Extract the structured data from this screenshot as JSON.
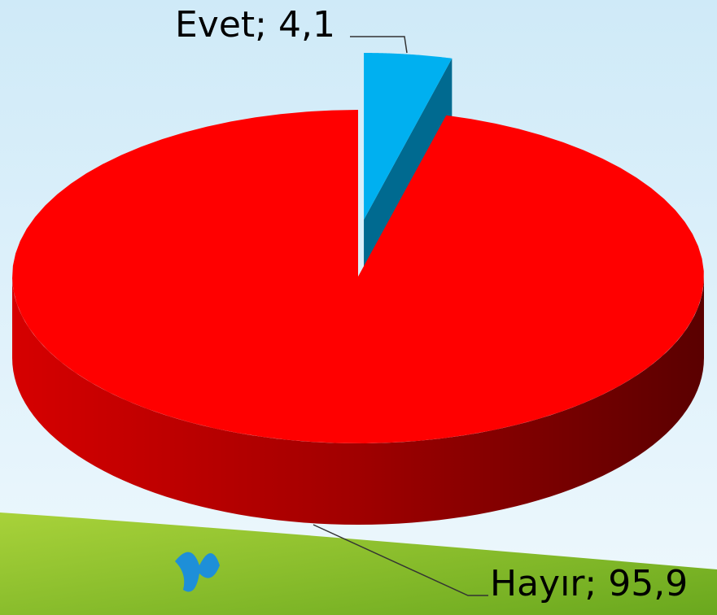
{
  "chart_data": {
    "type": "pie3d",
    "values": [
      4.1,
      95.9
    ],
    "value_labels": [
      "Evet; 4,1",
      "Hayır; 95,9"
    ],
    "colors": [
      "#00b0f0",
      "#ff0000"
    ]
  }
}
